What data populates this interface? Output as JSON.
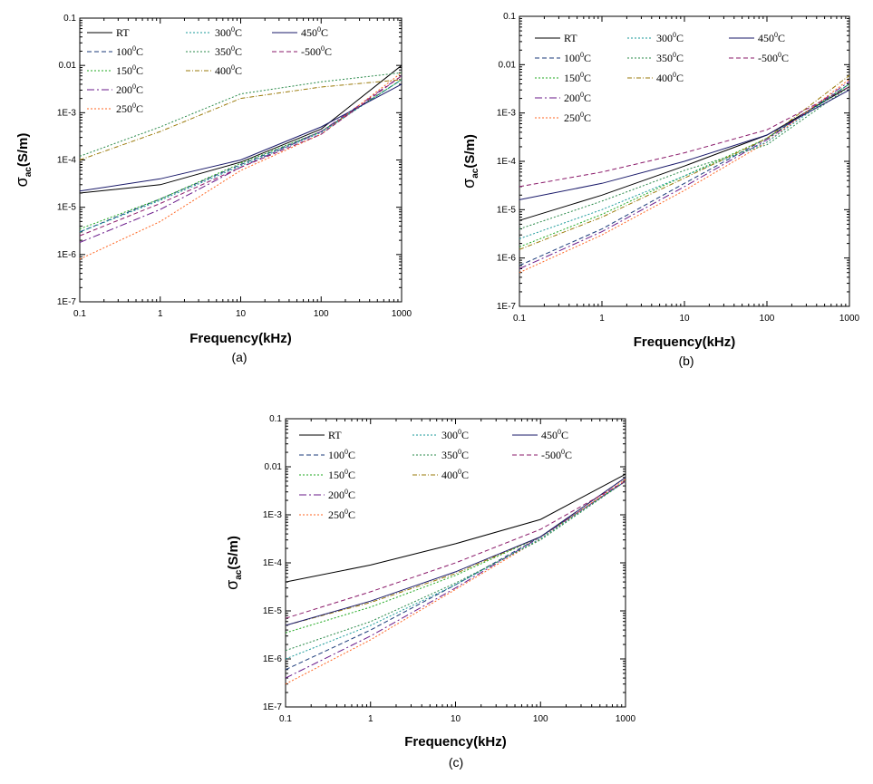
{
  "legend_labels": [
    "RT",
    "100",
    "150",
    "200",
    "250",
    "300",
    "350",
    "400",
    "450",
    "-500"
  ],
  "legend_unit": "C",
  "legend_sup": "0",
  "series_colors": [
    "#000000",
    "#1a3a7a",
    "#22aa22",
    "#6a1a8a",
    "#ff6622",
    "#1a9a9a",
    "#2a8a4a",
    "#9a7a0a",
    "#1a1a6a",
    "#8a1a6a"
  ],
  "series_dash": [
    "",
    "5,3",
    "2,2",
    "8,3,2,3",
    "2,2",
    "2,2",
    "2,2",
    "5,2,1,2",
    "",
    "5,3"
  ],
  "chart_data": [
    {
      "panel_label": "(a)",
      "type": "line",
      "xlabel": "Frequency(kHz)",
      "ylabel_main": "σ",
      "ylabel_sub": "ac",
      "ylabel_rest": "(S/m)",
      "x_scale": "log",
      "y_scale": "log",
      "xlim": [
        0.1,
        1000
      ],
      "ylim": [
        1e-07,
        0.1
      ],
      "x_ticks": [
        "0.1",
        "1",
        "10",
        "100",
        "1000"
      ],
      "y_ticks": [
        "1E-7",
        "1E-6",
        "1E-5",
        "1E-4",
        "1E-3",
        "0.01",
        "0.1"
      ],
      "x": [
        0.1,
        1,
        10,
        100,
        1000
      ],
      "series": [
        {
          "name": "RT",
          "values": [
            2e-05,
            3e-05,
            9e-05,
            0.00045,
            0.01
          ]
        },
        {
          "name": "100",
          "values": [
            3e-06,
            1.5e-05,
            8e-05,
            0.0004,
            0.005
          ]
        },
        {
          "name": "150",
          "values": [
            3.5e-06,
            1.5e-05,
            8.5e-05,
            0.0004,
            0.005
          ]
        },
        {
          "name": "200",
          "values": [
            1.8e-06,
            9e-06,
            7e-05,
            0.0004,
            0.006
          ]
        },
        {
          "name": "250",
          "values": [
            8e-07,
            5e-06,
            6e-05,
            0.00035,
            0.007
          ]
        },
        {
          "name": "300",
          "values": [
            3e-06,
            1.4e-05,
            7.5e-05,
            0.00038,
            0.005
          ]
        },
        {
          "name": "350",
          "values": [
            0.00012,
            0.0005,
            0.0025,
            0.0045,
            0.007
          ]
        },
        {
          "name": "400",
          "values": [
            0.0001,
            0.0004,
            0.002,
            0.0035,
            0.005
          ]
        },
        {
          "name": "450",
          "values": [
            2.2e-05,
            4e-05,
            0.0001,
            0.0005,
            0.004
          ]
        },
        {
          "name": "-500",
          "values": [
            2.5e-06,
            1.2e-05,
            7e-05,
            0.00035,
            0.006
          ]
        }
      ]
    },
    {
      "panel_label": "(b)",
      "type": "line",
      "xlabel": "Frequency(kHz)",
      "ylabel_main": "σ",
      "ylabel_sub": "ac",
      "ylabel_rest": "(S/m)",
      "x_scale": "log",
      "y_scale": "log",
      "xlim": [
        0.1,
        1000
      ],
      "ylim": [
        1e-07,
        0.1
      ],
      "x_ticks": [
        "0.1",
        "1",
        "10",
        "100",
        "1000"
      ],
      "y_ticks": [
        "1E-7",
        "1E-6",
        "1E-5",
        "1E-4",
        "1E-3",
        "0.01",
        "0.1"
      ],
      "x": [
        0.1,
        1,
        10,
        100,
        1000
      ],
      "series": [
        {
          "name": "RT",
          "values": [
            6e-06,
            2e-05,
            8e-05,
            0.00035,
            0.0035
          ]
        },
        {
          "name": "100",
          "values": [
            7e-07,
            4e-06,
            3.5e-05,
            0.0003,
            0.004
          ]
        },
        {
          "name": "150",
          "values": [
            1.7e-06,
            8e-06,
            5e-05,
            0.0003,
            0.004
          ]
        },
        {
          "name": "200",
          "values": [
            6e-07,
            3.5e-06,
            3e-05,
            0.00028,
            0.0045
          ]
        },
        {
          "name": "250",
          "values": [
            5e-07,
            3e-06,
            2.5e-05,
            0.00025,
            0.005
          ]
        },
        {
          "name": "300",
          "values": [
            2.5e-06,
            1e-05,
            5e-05,
            0.00025,
            0.004
          ]
        },
        {
          "name": "350",
          "values": [
            4e-06,
            1.5e-05,
            6.5e-05,
            0.00022,
            0.0035
          ]
        },
        {
          "name": "400",
          "values": [
            1.5e-06,
            7e-06,
            4.5e-05,
            0.0003,
            0.006
          ]
        },
        {
          "name": "450",
          "values": [
            1.6e-05,
            3.5e-05,
            0.0001,
            0.00035,
            0.003
          ]
        },
        {
          "name": "-500",
          "values": [
            3e-05,
            6e-05,
            0.00015,
            0.00045,
            0.0035
          ]
        }
      ]
    },
    {
      "panel_label": "(c)",
      "type": "line",
      "xlabel": "Frequency(kHz)",
      "ylabel_main": "σ",
      "ylabel_sub": "ac",
      "ylabel_rest": "(S/m)",
      "x_scale": "log",
      "y_scale": "log",
      "xlim": [
        0.1,
        1000
      ],
      "ylim": [
        1e-07,
        0.1
      ],
      "x_ticks": [
        "0.1",
        "1",
        "10",
        "100",
        "1000"
      ],
      "y_ticks": [
        "1E-7",
        "1E-6",
        "1E-5",
        "1E-4",
        "1E-3",
        "0.01",
        "0.1"
      ],
      "x": [
        0.1,
        1,
        10,
        100,
        1000
      ],
      "series": [
        {
          "name": "RT",
          "values": [
            4e-05,
            9e-05,
            0.00025,
            0.0008,
            0.007
          ]
        },
        {
          "name": "100",
          "values": [
            6e-07,
            4e-06,
            3.5e-05,
            0.00035,
            0.005
          ]
        },
        {
          "name": "150",
          "values": [
            3.5e-06,
            1.2e-05,
            5.5e-05,
            0.00035,
            0.005
          ]
        },
        {
          "name": "200",
          "values": [
            4e-07,
            3e-06,
            3e-05,
            0.00035,
            0.005
          ]
        },
        {
          "name": "250",
          "values": [
            3e-07,
            2.5e-06,
            2.8e-05,
            0.00032,
            0.0055
          ]
        },
        {
          "name": "300",
          "values": [
            1e-06,
            5e-06,
            3.5e-05,
            0.00032,
            0.005
          ]
        },
        {
          "name": "350",
          "values": [
            1.5e-06,
            6e-06,
            3.8e-05,
            0.0003,
            0.005
          ]
        },
        {
          "name": "400",
          "values": [
            5e-06,
            1.5e-05,
            6e-05,
            0.00035,
            0.006
          ]
        },
        {
          "name": "450",
          "values": [
            5e-06,
            1.6e-05,
            6.5e-05,
            0.00035,
            0.006
          ]
        },
        {
          "name": "-500",
          "values": [
            7e-06,
            2.5e-05,
            0.0001,
            0.0005,
            0.005
          ]
        }
      ]
    }
  ]
}
